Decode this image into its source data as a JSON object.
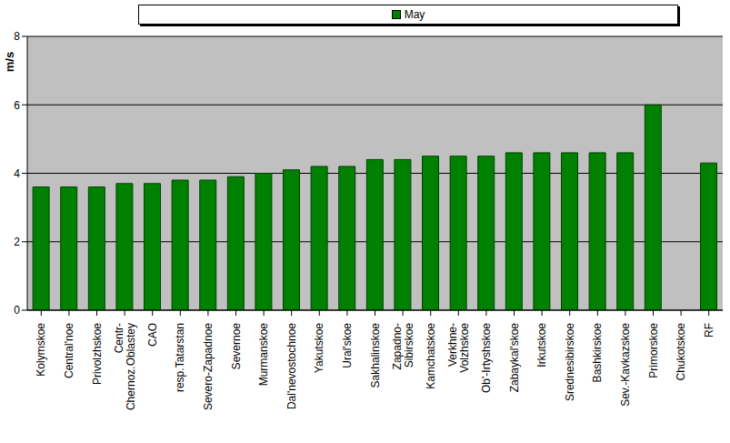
{
  "chart_data": {
    "type": "bar",
    "y_label": "m/s",
    "categories": [
      "Kolymskoe",
      "Central'noe",
      "Privolzhskoe",
      "Centr- Chernoz.Oblastey",
      "CAO",
      "resp.Tatarstan",
      "Severo-Zapadnoe",
      "Severnoe",
      "Murmanskoe",
      "Dal'nevostochnoe",
      "Yakutskoe",
      "Ural'skoe",
      "Sakhalinskoe",
      "Zapadno- Sibirskoe",
      "Kamchatskoe",
      "Verkhne- Volzhskoe",
      "Ob'-Irtyshskoe",
      "Zabaykal'skoe",
      "Irkutskoe",
      "Srednesibirskoe",
      "Bashkirskoe",
      "Sev.-Kavkazskoe",
      "Primorskoe",
      "Chukotskoe",
      "RF"
    ],
    "series": [
      {
        "name": "May",
        "color": "#008000",
        "values": [
          3.6,
          3.6,
          3.6,
          3.7,
          3.7,
          3.8,
          3.8,
          3.9,
          4.0,
          4.1,
          4.2,
          4.2,
          4.4,
          4.4,
          4.5,
          4.5,
          4.5,
          4.6,
          4.6,
          4.6,
          4.6,
          4.6,
          6.0,
          null,
          4.3
        ]
      }
    ],
    "ylim": [
      0,
      8
    ],
    "yticks": [
      0,
      2,
      4,
      6,
      8
    ],
    "grid": true,
    "legend": "top"
  }
}
